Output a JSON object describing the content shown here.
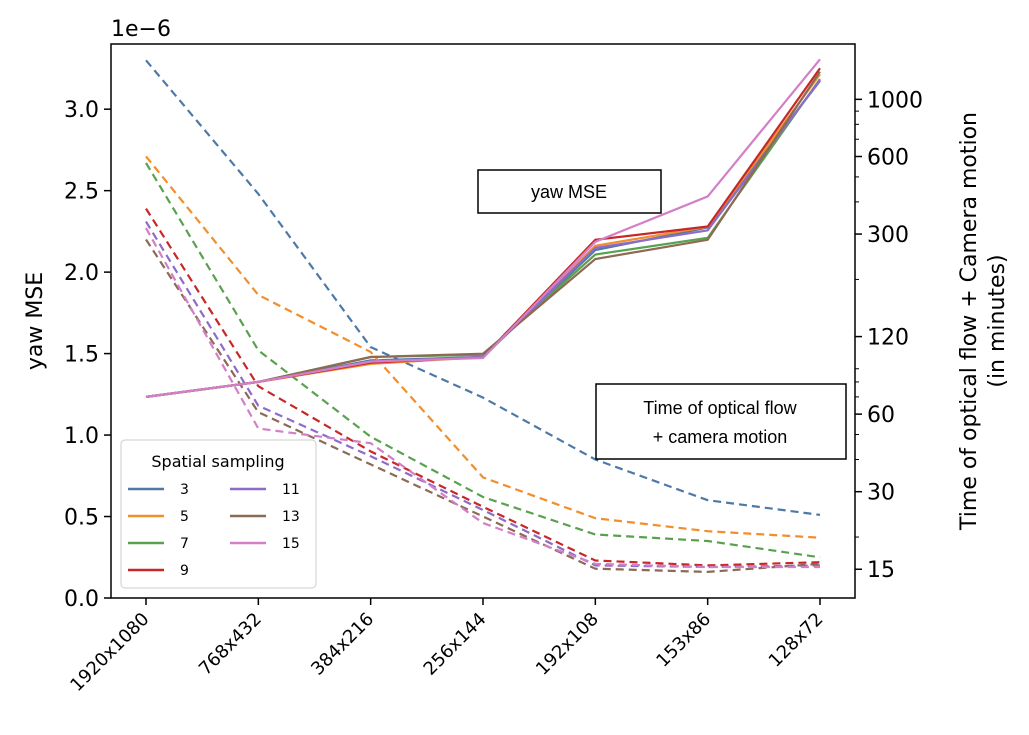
{
  "chart_data": {
    "type": "line",
    "categories": [
      "1920x1080",
      "768x432",
      "384x216",
      "256x144",
      "192x108",
      "153x86",
      "128x72"
    ],
    "y_left": {
      "label": "yaw MSE",
      "offset_text": "1e−6",
      "ticks": [
        0.0,
        0.5,
        1.0,
        1.5,
        2.0,
        2.5,
        3.0
      ],
      "tick_labels": [
        "0.0",
        "0.5",
        "1.0",
        "1.5",
        "2.0",
        "2.5",
        "3.0"
      ],
      "lim": [
        0,
        3.4
      ]
    },
    "y_right": {
      "label_line1": "Time of optical flow + Camera motion",
      "label_line2": "(in minutes)",
      "scale": "log",
      "ticks": [
        15,
        30,
        60,
        120,
        300,
        600,
        1000
      ],
      "tick_labels": [
        "15",
        "30",
        "60",
        "120",
        "300",
        "600",
        "1000"
      ],
      "lim": [
        11.6,
        1640
      ]
    },
    "annotations": {
      "mse_box": "yaw MSE",
      "time_box_line1": "Time of optical flow",
      "time_box_line2": "+ camera motion"
    },
    "legend": {
      "title": "Spatial sampling",
      "placement": "lower-left",
      "linestyle_note": "dashed = yaw MSE (left axis), solid = time (right axis)"
    },
    "series": [
      {
        "name": "3",
        "color": "#4e79a7",
        "mse": [
          3.3,
          2.48,
          1.54,
          1.23,
          0.85,
          0.6,
          0.51
        ],
        "time_minutes": [
          70,
          80,
          97,
          100,
          260,
          318,
          1180
        ]
      },
      {
        "name": "5",
        "color": "#f28e2b",
        "mse": [
          2.71,
          1.86,
          1.51,
          0.74,
          0.49,
          0.41,
          0.37
        ],
        "time_minutes": [
          70,
          80,
          94,
          100,
          270,
          320,
          1250
        ]
      },
      {
        "name": "7",
        "color": "#59a14f",
        "mse": [
          2.67,
          1.52,
          0.99,
          0.62,
          0.39,
          0.35,
          0.25
        ],
        "time_minutes": [
          70,
          80,
          100,
          102,
          250,
          290,
          1200
        ]
      },
      {
        "name": "9",
        "color": "#c62828",
        "mse": [
          2.39,
          1.3,
          0.9,
          0.56,
          0.23,
          0.2,
          0.22
        ],
        "time_minutes": [
          70,
          80,
          95,
          100,
          285,
          321,
          1320
        ]
      },
      {
        "name": "11",
        "color": "#8e6bc9",
        "mse": [
          2.31,
          1.18,
          0.87,
          0.54,
          0.2,
          0.19,
          0.2
        ],
        "time_minutes": [
          70,
          80,
          96,
          100,
          265,
          310,
          1190
        ]
      },
      {
        "name": "13",
        "color": "#8c6a54",
        "mse": [
          2.2,
          1.14,
          0.82,
          0.5,
          0.18,
          0.16,
          0.21
        ],
        "time_minutes": [
          70,
          80,
          100,
          103,
          240,
          285,
          1280
        ]
      },
      {
        "name": "15",
        "color": "#d37fc8",
        "mse": [
          2.27,
          1.04,
          0.95,
          0.46,
          0.21,
          0.19,
          0.19
        ],
        "time_minutes": [
          70,
          80,
          96,
          99,
          280,
          420,
          1430
        ]
      }
    ]
  }
}
